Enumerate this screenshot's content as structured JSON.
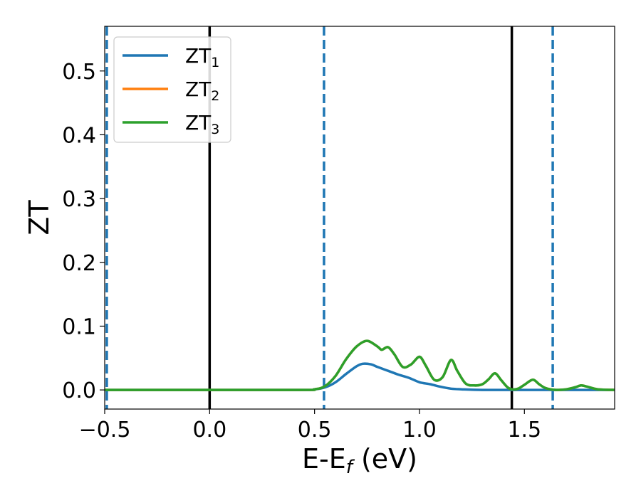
{
  "chart_data": {
    "type": "line",
    "xlabel": {
      "main": "E-E",
      "sub": "f",
      "unit": " (eV)"
    },
    "ylabel": "ZT",
    "xlim": [
      -0.5,
      1.93
    ],
    "ylim": [
      -0.03,
      0.57
    ],
    "xticks": [
      -0.5,
      0.0,
      0.5,
      1.0,
      1.5
    ],
    "xtick_labels": [
      "−0.5",
      "0.0",
      "0.5",
      "1.0",
      "1.5"
    ],
    "yticks": [
      0.0,
      0.1,
      0.2,
      0.3,
      0.4,
      0.5
    ],
    "ytick_labels": [
      "0.0",
      "0.1",
      "0.2",
      "0.3",
      "0.4",
      "0.5"
    ],
    "grid": false,
    "legend_position": "top-left",
    "series": [
      {
        "name": "ZT",
        "sub": "1",
        "color": "#1f77b4",
        "x": [
          -0.5,
          0.4,
          0.5,
          0.55,
          0.6,
          0.65,
          0.7,
          0.73,
          0.77,
          0.8,
          0.85,
          0.9,
          0.95,
          1.0,
          1.05,
          1.1,
          1.15,
          1.2,
          1.3,
          1.5,
          1.93
        ],
        "y": [
          0.0,
          0.0,
          0.001,
          0.004,
          0.012,
          0.025,
          0.037,
          0.041,
          0.04,
          0.036,
          0.03,
          0.024,
          0.019,
          0.012,
          0.009,
          0.005,
          0.002,
          0.001,
          0.0,
          0.0,
          0.0
        ]
      },
      {
        "name": "ZT",
        "sub": "2",
        "color": "#ff7f0e",
        "x": [
          -0.5,
          0.4,
          0.5,
          0.55,
          0.6,
          0.65,
          0.7,
          0.75,
          0.8,
          0.82,
          0.85,
          0.88,
          0.92,
          0.96,
          1.0,
          1.03,
          1.07,
          1.11,
          1.15,
          1.18,
          1.22,
          1.26,
          1.3,
          1.33,
          1.36,
          1.39,
          1.42,
          1.44,
          1.47,
          1.5,
          1.54,
          1.57,
          1.6,
          1.65,
          1.7,
          1.74,
          1.77,
          1.8,
          1.85,
          1.93
        ],
        "y": [
          0.0,
          0.0,
          0.001,
          0.006,
          0.022,
          0.048,
          0.068,
          0.077,
          0.068,
          0.063,
          0.067,
          0.056,
          0.036,
          0.04,
          0.052,
          0.038,
          0.016,
          0.02,
          0.047,
          0.03,
          0.01,
          0.007,
          0.009,
          0.017,
          0.026,
          0.015,
          0.004,
          0.001,
          0.002,
          0.008,
          0.016,
          0.009,
          0.003,
          0.0,
          0.001,
          0.004,
          0.007,
          0.005,
          0.001,
          0.0
        ]
      },
      {
        "name": "ZT",
        "sub": "3",
        "color": "#2ca02c",
        "x": [
          -0.5,
          0.4,
          0.5,
          0.55,
          0.6,
          0.65,
          0.7,
          0.75,
          0.8,
          0.82,
          0.85,
          0.88,
          0.92,
          0.96,
          1.0,
          1.03,
          1.07,
          1.11,
          1.15,
          1.18,
          1.22,
          1.26,
          1.3,
          1.33,
          1.36,
          1.39,
          1.42,
          1.44,
          1.47,
          1.5,
          1.54,
          1.57,
          1.6,
          1.65,
          1.7,
          1.74,
          1.77,
          1.8,
          1.85,
          1.93
        ],
        "y": [
          0.0,
          0.0,
          0.001,
          0.006,
          0.022,
          0.048,
          0.068,
          0.077,
          0.068,
          0.063,
          0.067,
          0.056,
          0.036,
          0.04,
          0.052,
          0.038,
          0.016,
          0.02,
          0.047,
          0.03,
          0.01,
          0.007,
          0.009,
          0.017,
          0.026,
          0.015,
          0.004,
          0.001,
          0.002,
          0.008,
          0.016,
          0.009,
          0.003,
          0.0,
          0.001,
          0.004,
          0.007,
          0.005,
          0.001,
          0.0
        ]
      }
    ],
    "vlines_dashed": {
      "color": "#1f77b4",
      "x": [
        -0.49,
        0.545,
        1.635
      ]
    },
    "vlines_solid": {
      "color": "#000000",
      "x": [
        0.0,
        1.44
      ]
    }
  }
}
